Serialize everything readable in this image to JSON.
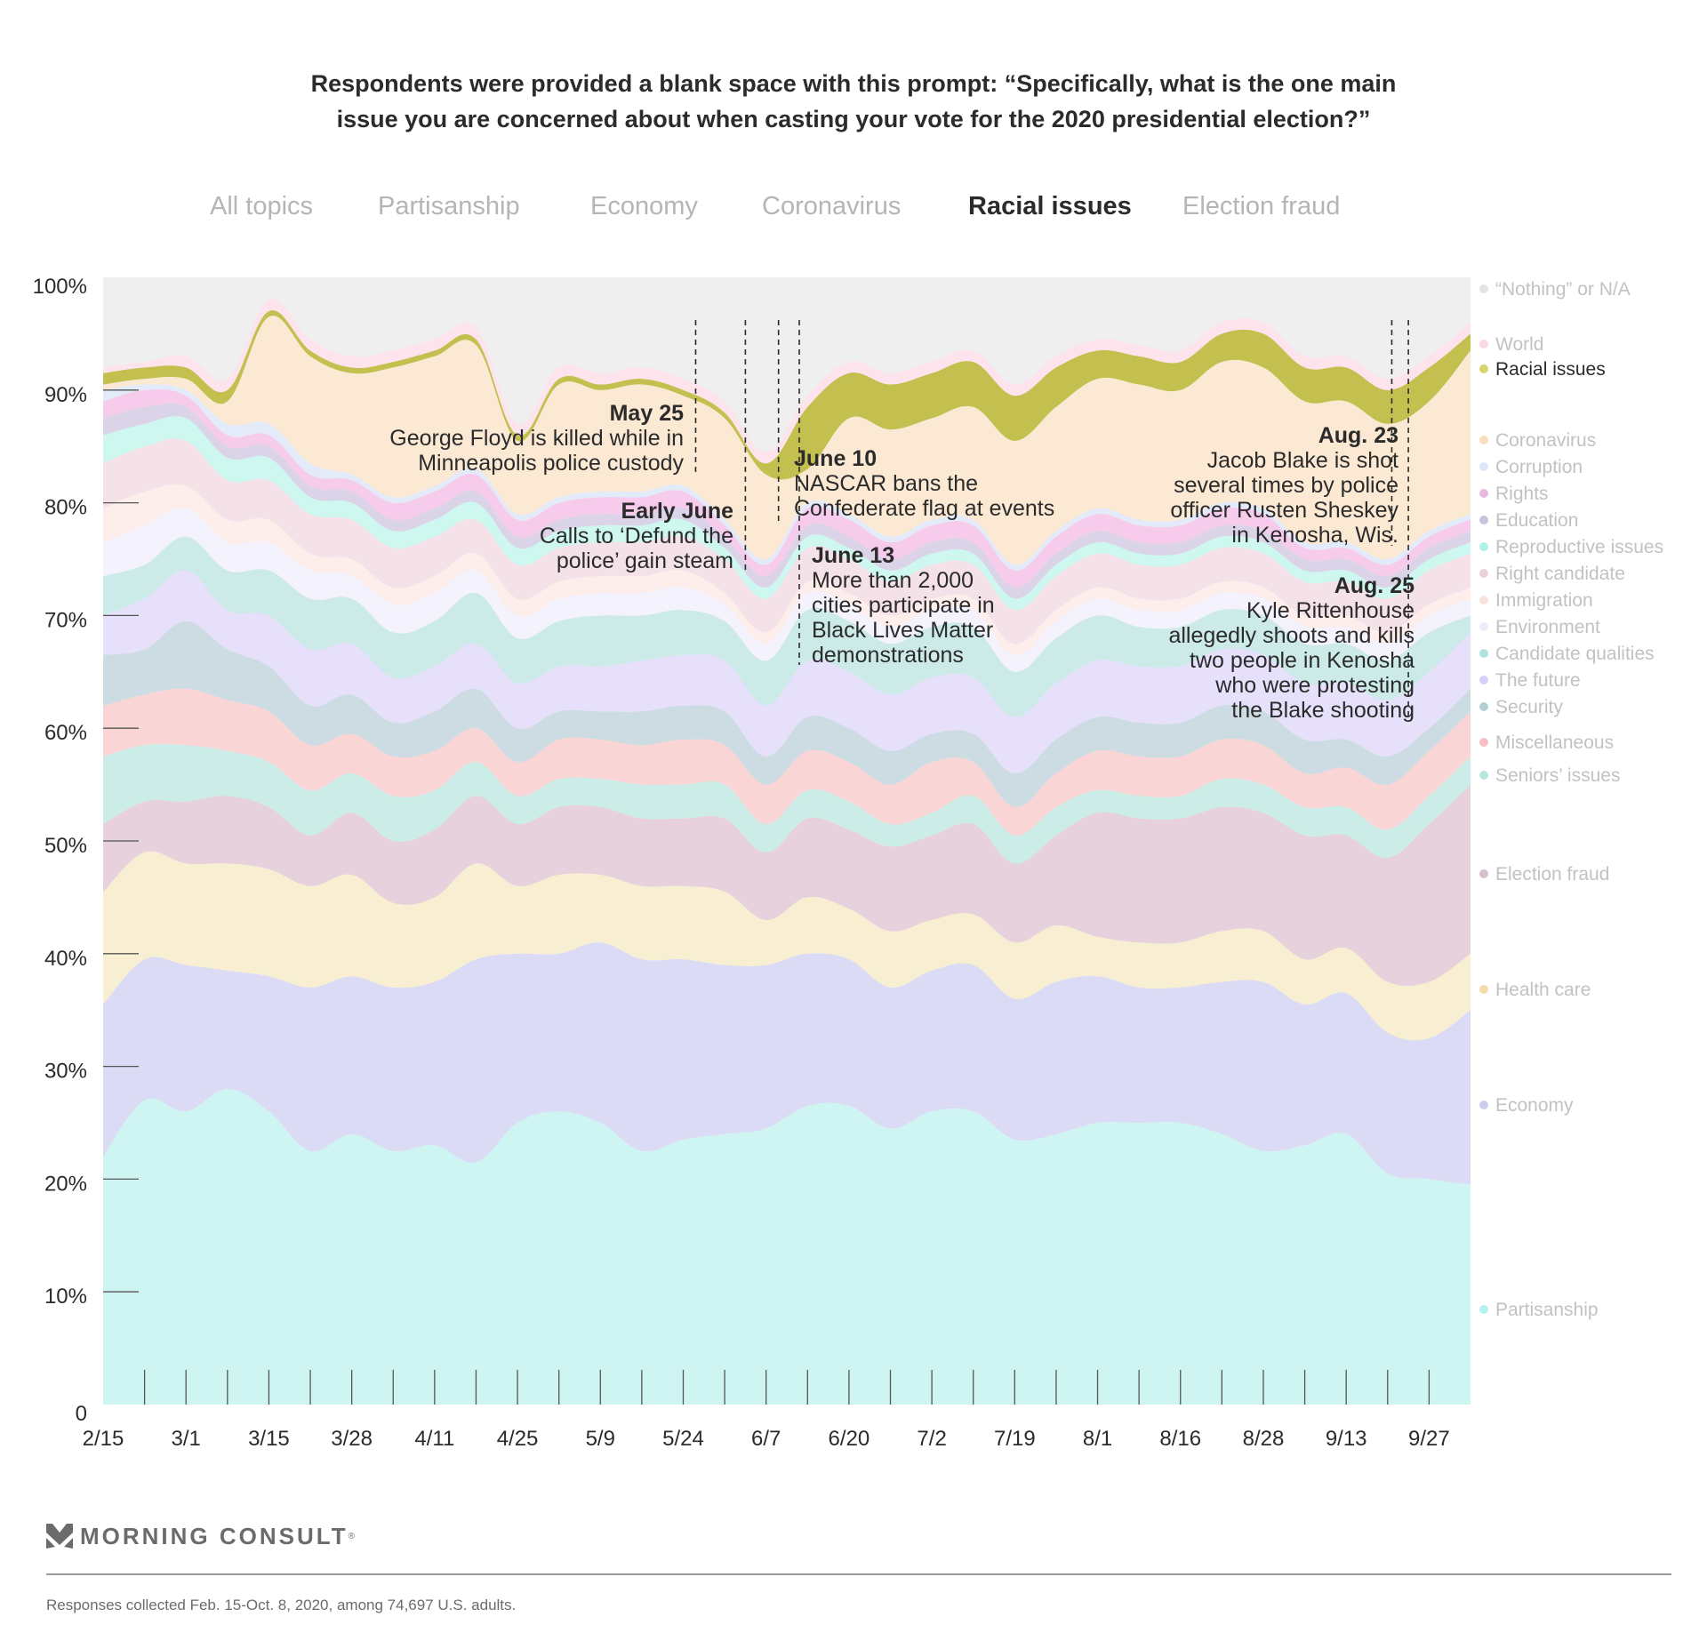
{
  "title_lines": [
    "Respondents were provided a blank space with this prompt: “Specifically, what is the one main",
    "issue you are concerned about when casting your vote for the 2020 presidential election?”"
  ],
  "tabs": [
    {
      "label": "All topics",
      "active": false
    },
    {
      "label": "Partisanship",
      "active": false
    },
    {
      "label": "Economy",
      "active": false
    },
    {
      "label": "Coronavirus",
      "active": false
    },
    {
      "label": "Racial issues",
      "active": true
    },
    {
      "label": "Election fraud",
      "active": false
    }
  ],
  "chart_data": {
    "type": "area",
    "stacked": true,
    "title": "Respondents were provided a blank space with this prompt: “Specifically, what is the one main issue you are concerned about when casting your vote for the 2020 presidential election?”",
    "xlabel": "",
    "ylabel": "",
    "ylim": [
      0,
      100
    ],
    "yticks": [
      "0",
      "10%",
      "20%",
      "30%",
      "40%",
      "50%",
      "60%",
      "70%",
      "80%",
      "90%",
      "100%"
    ],
    "xtick_labels": [
      "2/15",
      "3/1",
      "3/15",
      "3/28",
      "4/11",
      "4/25",
      "5/9",
      "5/24",
      "6/7",
      "6/20",
      "7/2",
      "7/19",
      "8/1",
      "8/16",
      "8/28",
      "9/13",
      "9/27"
    ],
    "xtick_label_indices": [
      0,
      2,
      4,
      6,
      8,
      10,
      12,
      14,
      16,
      18,
      20,
      22,
      24,
      26,
      28,
      30,
      32
    ],
    "n_points": 34,
    "highlight": "Racial issues",
    "legend_position": "right",
    "series": [
      {
        "name": "Partisanship",
        "color": "#cff5f3",
        "values": [
          22,
          27,
          26,
          28,
          26,
          22.5,
          24,
          22.5,
          23,
          21.5,
          25,
          26,
          25,
          22.5,
          23.5,
          24,
          24.5,
          26.5,
          26.5,
          24.5,
          26,
          26,
          23.5,
          24,
          25,
          25,
          25,
          24,
          22.5,
          23,
          24,
          20.5,
          20,
          19.5
        ]
      },
      {
        "name": "Economy",
        "color": "#dcdbf5",
        "values": [
          13.5,
          12.5,
          13,
          10.5,
          12,
          14.5,
          14,
          14.5,
          14.5,
          18,
          15,
          14,
          16,
          17,
          16,
          15,
          14.5,
          13.5,
          13,
          12.5,
          12.5,
          13,
          12.5,
          13.5,
          13,
          12,
          12,
          13.5,
          15,
          12.5,
          12.5,
          12.5,
          12.5,
          15.5
        ]
      },
      {
        "name": "Health care",
        "color": "#f8efd3",
        "values": [
          10,
          9.5,
          9,
          9.5,
          9.5,
          9,
          9,
          7.5,
          7.5,
          8.5,
          6,
          7,
          6,
          6.5,
          6.5,
          6.5,
          4,
          5,
          4.5,
          5,
          4.5,
          4.5,
          5,
          5,
          3.5,
          4,
          4,
          4.5,
          4.5,
          4,
          4,
          4.5,
          5,
          5
        ]
      },
      {
        "name": "Election fraud",
        "color": "#e6d1dc",
        "values": [
          6,
          4.5,
          5.5,
          6,
          5.5,
          4.5,
          5.5,
          5.5,
          6,
          6,
          5.5,
          6,
          6,
          6,
          6,
          6.5,
          6,
          7,
          7,
          7.5,
          7.5,
          8,
          7,
          8,
          11,
          11,
          11,
          11,
          10.5,
          11,
          10,
          11,
          14,
          15
        ]
      },
      {
        "name": "Seniors’ issues",
        "color": "#ccede7",
        "values": [
          6,
          5,
          5,
          4,
          4,
          4,
          3.5,
          4,
          3.5,
          3,
          2.5,
          2.5,
          2.5,
          3,
          3,
          3,
          2.5,
          2.5,
          2.5,
          2,
          2,
          2.5,
          2.5,
          2.5,
          2,
          2,
          2,
          2.5,
          2.5,
          2.5,
          2.5,
          2.5,
          2.5,
          2.5
        ]
      },
      {
        "name": "Miscellaneous",
        "color": "#f9d5d6",
        "values": [
          4.5,
          4.5,
          5,
          4.5,
          4.5,
          4,
          3.5,
          3.5,
          3.5,
          3,
          3,
          3.5,
          3.5,
          3.5,
          4,
          3.5,
          3.5,
          3.5,
          3.5,
          3.5,
          4.5,
          3,
          2.5,
          3,
          3.5,
          3.5,
          3.5,
          3.5,
          3.5,
          3,
          3.5,
          4,
          4,
          4
        ]
      },
      {
        "name": "Security",
        "color": "#cddce2",
        "values": [
          4.5,
          4,
          6,
          4.5,
          4,
          3.5,
          3.5,
          3,
          3.5,
          3.5,
          3,
          2.5,
          2.5,
          3,
          3,
          3,
          2.5,
          3,
          3,
          3,
          2.5,
          2.5,
          3,
          3,
          3,
          3,
          3,
          3,
          3,
          3,
          2.5,
          2.5,
          2,
          2
        ]
      },
      {
        "name": "The future",
        "color": "#e6e0fb",
        "values": [
          3.5,
          4.5,
          4.5,
          3.5,
          4.5,
          5,
          4.5,
          4,
          4,
          4,
          4,
          4,
          4,
          4.5,
          4.5,
          4.5,
          4.5,
          5,
          5,
          5,
          5,
          5,
          5,
          5,
          5,
          5,
          5,
          5,
          5,
          5,
          5,
          5,
          5,
          5
        ]
      },
      {
        "name": "Candidate qualities",
        "color": "#cbeae8",
        "values": [
          3.5,
          3,
          3,
          3.5,
          4,
          4.5,
          4,
          4,
          4,
          4.5,
          4,
          4,
          4.5,
          4,
          4,
          3.5,
          4,
          4.5,
          4.5,
          4.5,
          4.5,
          4.5,
          4,
          4,
          4,
          3.5,
          3.5,
          3.5,
          3.5,
          3.5,
          3.5,
          3.5,
          3.5,
          1.5
        ]
      },
      {
        "name": "Environment",
        "color": "#f4f3fd",
        "values": [
          3,
          3.5,
          2.5,
          2.5,
          2.5,
          2.5,
          2,
          2.5,
          2.5,
          2,
          2,
          2,
          2,
          2,
          2,
          1.5,
          1.5,
          1.5,
          1.5,
          1.5,
          1.5,
          1.5,
          1.5,
          1.5,
          1.5,
          1.5,
          1.5,
          1.5,
          1.5,
          1.5,
          1.5,
          1.5,
          1.5,
          1.5
        ]
      },
      {
        "name": "Immigration",
        "color": "#fdeeec",
        "values": [
          3,
          3,
          2,
          2,
          2,
          1.5,
          1.5,
          1.5,
          1.5,
          1.5,
          1.5,
          1.5,
          1.5,
          1.5,
          1.5,
          1,
          1,
          1,
          1,
          1,
          1,
          1,
          1,
          1,
          1,
          1,
          1,
          1,
          1,
          1,
          1,
          1,
          1,
          1
        ]
      },
      {
        "name": "Right candidate",
        "color": "#f5e1e8",
        "values": [
          4,
          4,
          4,
          3.5,
          3.5,
          3.5,
          3.5,
          3.5,
          3.5,
          3,
          3,
          3,
          3,
          3,
          3,
          3,
          3,
          3,
          3,
          3,
          3,
          3,
          3,
          3,
          3,
          3,
          3,
          3,
          3,
          3,
          3,
          3,
          3,
          3
        ]
      },
      {
        "name": "Reproductive issues",
        "color": "#cdf7ef",
        "values": [
          2.5,
          2,
          2,
          2,
          2,
          1.5,
          1.5,
          1.5,
          1.5,
          1.5,
          1.5,
          1.5,
          1.5,
          1.5,
          1.5,
          1,
          1,
          1,
          1,
          1,
          1,
          1,
          1,
          1,
          1,
          1,
          1,
          1,
          1,
          1,
          1,
          1,
          1,
          1
        ]
      },
      {
        "name": "Education",
        "color": "#dbd4e9",
        "values": [
          1.5,
          1.5,
          1,
          1,
          1,
          1,
          1,
          1,
          1,
          1,
          1,
          1,
          1,
          1,
          1,
          1,
          1,
          1,
          1,
          1,
          1,
          1,
          1,
          1,
          1,
          1,
          1,
          1,
          1,
          1,
          1,
          1,
          1,
          1
        ]
      },
      {
        "name": "Rights",
        "color": "#f6cbec",
        "values": [
          1.5,
          1.5,
          1,
          1,
          1,
          1,
          1,
          1.5,
          1.5,
          1.5,
          1.5,
          1.5,
          1.5,
          1.5,
          1.5,
          1,
          1,
          1.5,
          1.5,
          1.5,
          1.5,
          1.5,
          1.5,
          1.5,
          1.5,
          1.5,
          1.5,
          1.5,
          1.5,
          1,
          1,
          1,
          1,
          1
        ]
      },
      {
        "name": "Corruption",
        "color": "#e3ebfb",
        "values": [
          1,
          0.5,
          0.5,
          1,
          1,
          1,
          0.5,
          0.5,
          0.5,
          0.5,
          0.5,
          0.5,
          0.5,
          0.5,
          0.5,
          0.5,
          0.5,
          0.5,
          0.5,
          0.5,
          0.5,
          0.5,
          0.5,
          0.5,
          0.5,
          0.5,
          0.5,
          0.5,
          0.5,
          0.5,
          0.5,
          0.5,
          0.5,
          0.5
        ]
      },
      {
        "name": "Coronavirus",
        "color": "#fce9d4",
        "values": [
          0.5,
          0.5,
          1,
          2,
          9.5,
          9.5,
          9,
          11.5,
          11.5,
          11,
          6.5,
          10,
          9,
          9.5,
          8,
          9,
          7.5,
          3,
          8.5,
          9.5,
          9,
          10,
          11,
          11,
          11.5,
          12,
          11.5,
          12.5,
          12.5,
          12.5,
          12.5,
          12,
          11.5,
          14.5
        ]
      },
      {
        "name": "Racial issues",
        "color": "#c3c050",
        "values": [
          1,
          1,
          1,
          1,
          0.5,
          0.5,
          0.5,
          0.5,
          0.5,
          0.5,
          0.5,
          0.5,
          0.5,
          0.5,
          0.5,
          0.5,
          1,
          5.5,
          4,
          4,
          4,
          4,
          4,
          3.5,
          2.5,
          2.5,
          2.5,
          2.5,
          3,
          3,
          3,
          3,
          3,
          1.5
        ]
      },
      {
        "name": "World",
        "color": "#fde3ec",
        "values": [
          0.5,
          0.5,
          1,
          1,
          1,
          1,
          1,
          1,
          1,
          1,
          1,
          1,
          1,
          1,
          1,
          1,
          1,
          1,
          1,
          1,
          1,
          1,
          1,
          1,
          1,
          1,
          1,
          1,
          1,
          1,
          1,
          1,
          1,
          1
        ]
      },
      {
        "name": "“Nothing” or N/A",
        "color": "#efefef",
        "values": [
          null
        ]
      }
    ],
    "annotations": [
      {
        "date": "May 25",
        "lines": [
          "George Floyd is killed while in",
          "Minneapolis police custody"
        ],
        "x_index": 14.3
      },
      {
        "date": "Early June",
        "lines": [
          "Calls to ‘Defund the",
          "police’ gain steam"
        ],
        "x_index": 15.5
      },
      {
        "date": "June 10",
        "lines": [
          "NASCAR bans the",
          "Confederate flag at events"
        ],
        "x_index": 16.3
      },
      {
        "date": "June 13",
        "lines": [
          "More than 2,000",
          "cities participate in",
          "Black Lives Matter",
          "demonstrations"
        ],
        "x_index": 16.8
      },
      {
        "date": "Aug. 23",
        "lines": [
          "Jacob Blake is shot",
          "several times by police",
          "officer Rusten Sheskey",
          "in Kenosha, Wis."
        ],
        "x_index": 31.1
      },
      {
        "date": "Aug. 25",
        "lines": [
          "Kyle Rittenhouse",
          "allegedly shoots and kills",
          "two people in Kenosha",
          "who were protesting",
          "the Blake shooting"
        ],
        "x_index": 31.5
      }
    ]
  },
  "legend": [
    {
      "name": "“Nothing” or N/A",
      "color": "#e4e4e4"
    },
    {
      "name": "World",
      "color": "#fbd9e4"
    },
    {
      "name": "Racial issues",
      "color": "#d6d46a",
      "active": true
    },
    {
      "name": "Coronavirus",
      "color": "#f6dfbb"
    },
    {
      "name": "Corruption",
      "color": "#dde5f8"
    },
    {
      "name": "Rights",
      "color": "#e8b9df"
    },
    {
      "name": "Education",
      "color": "#c9c2df"
    },
    {
      "name": "Reproductive issues",
      "color": "#b0f1e7"
    },
    {
      "name": "Right candidate",
      "color": "#ecd0dc"
    },
    {
      "name": "Immigration",
      "color": "#f9e2dc"
    },
    {
      "name": "Environment",
      "color": "#ecebfa"
    },
    {
      "name": "Candidate qualities",
      "color": "#b2e2db"
    },
    {
      "name": "The future",
      "color": "#d6cffa"
    },
    {
      "name": "Security",
      "color": "#b3cfd2"
    },
    {
      "name": "Miscellaneous",
      "color": "#f6bec0"
    },
    {
      "name": "Seniors’ issues",
      "color": "#b7e5de"
    },
    {
      "name": "Election fraud",
      "color": "#d8bfcd"
    },
    {
      "name": "Health care",
      "color": "#f4dcaa"
    },
    {
      "name": "Economy",
      "color": "#cfcdef"
    },
    {
      "name": "Partisanship",
      "color": "#b3f1ee"
    }
  ],
  "footer": {
    "brand": "MORNING CONSULT",
    "note": "Responses collected Feb. 15-Oct. 8, 2020, among 74,697 U.S. adults."
  }
}
